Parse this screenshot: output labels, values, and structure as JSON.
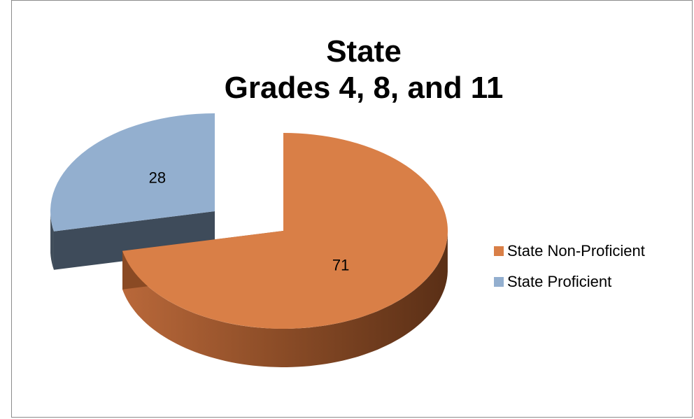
{
  "chart_data": {
    "type": "pie",
    "title_lines": [
      "State",
      "Grades 4, 8, and 11"
    ],
    "slices": [
      {
        "label": "State Non-Proficient",
        "value": 71,
        "color": "#D97F47",
        "side_color": "#8A4A24"
      },
      {
        "label": "State Proficient",
        "value": 28,
        "color": "#93AFCF",
        "side_color": "#3E4B5A"
      }
    ],
    "legend_position": "right",
    "style": "3d-exploded"
  }
}
